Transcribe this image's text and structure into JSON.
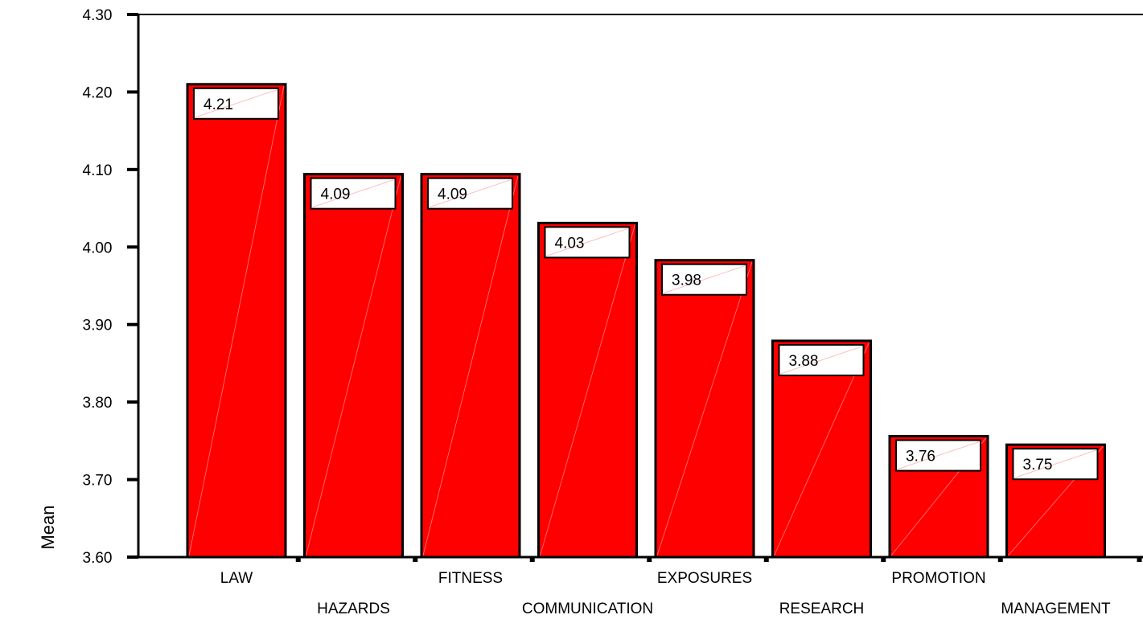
{
  "chart_data": {
    "type": "bar",
    "title": "",
    "xlabel": "",
    "ylabel": "Mean",
    "ylim": [
      3.6,
      4.3
    ],
    "yticks": [
      "3.60",
      "3.70",
      "3.80",
      "3.90",
      "4.00",
      "4.10",
      "4.20",
      "4.30"
    ],
    "categories": [
      "LAW",
      "HAZARDS",
      "FITNESS",
      "COMMUNICATION",
      "EXPOSURES",
      "RESEARCH",
      "PROMOTION",
      "MANAGEMENT"
    ],
    "values": [
      4.21,
      4.094,
      4.094,
      4.031,
      3.983,
      3.879,
      3.756,
      3.745
    ],
    "data_labels": [
      "4.21",
      "4.09",
      "4.09",
      "4.03",
      "3.98",
      "3.88",
      "3.76",
      "3.75"
    ],
    "bar_color": "#ff0000",
    "grid": false,
    "legend": "none"
  }
}
